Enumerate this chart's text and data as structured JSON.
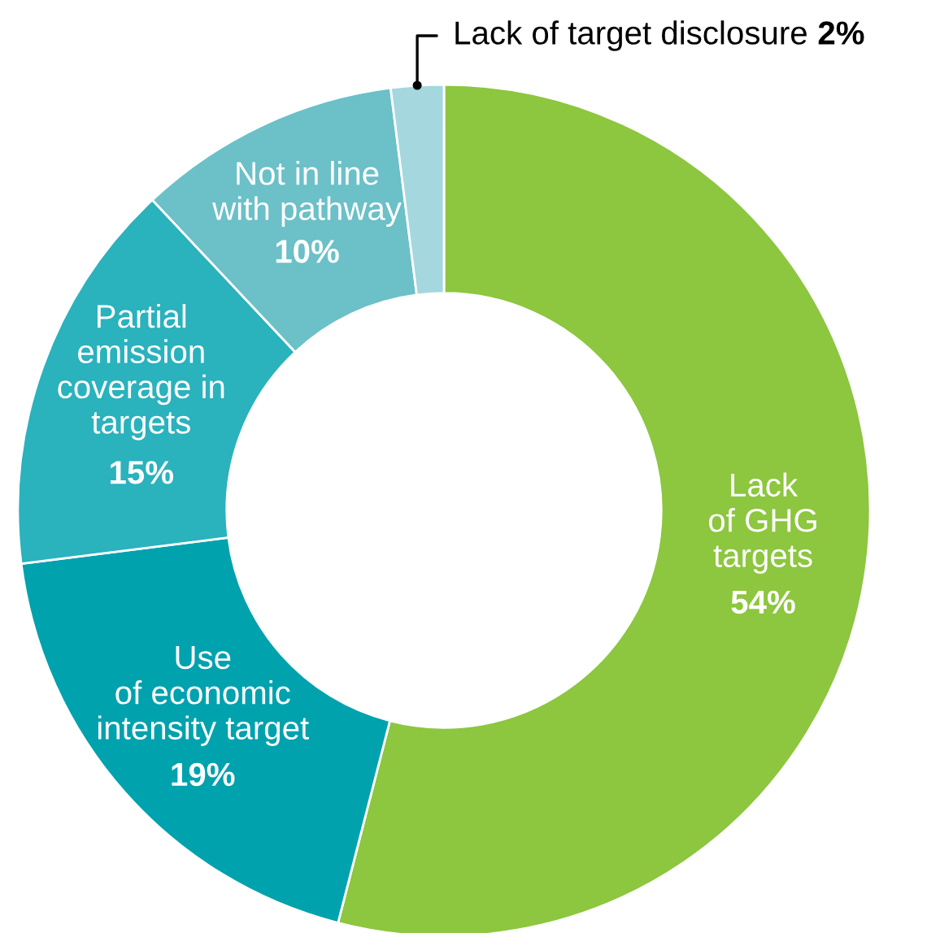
{
  "chart_data": {
    "type": "donut",
    "categories": [
      "Lack\nof GHG\ntargets",
      "Use\nof economic\nintensity target",
      "Partial\nemission\ncoverage in\ntargets",
      "Not in line\nwith pathway",
      "Lack of target disclosure"
    ],
    "values": [
      54,
      19,
      15,
      10,
      2
    ],
    "value_labels": [
      "54%",
      "19%",
      "15%",
      "10%",
      "2%"
    ],
    "colors": [
      "#8dc63f",
      "#00a2ae",
      "#2ab2bd",
      "#6cc0c8",
      "#a5d7de"
    ],
    "legend": false
  }
}
